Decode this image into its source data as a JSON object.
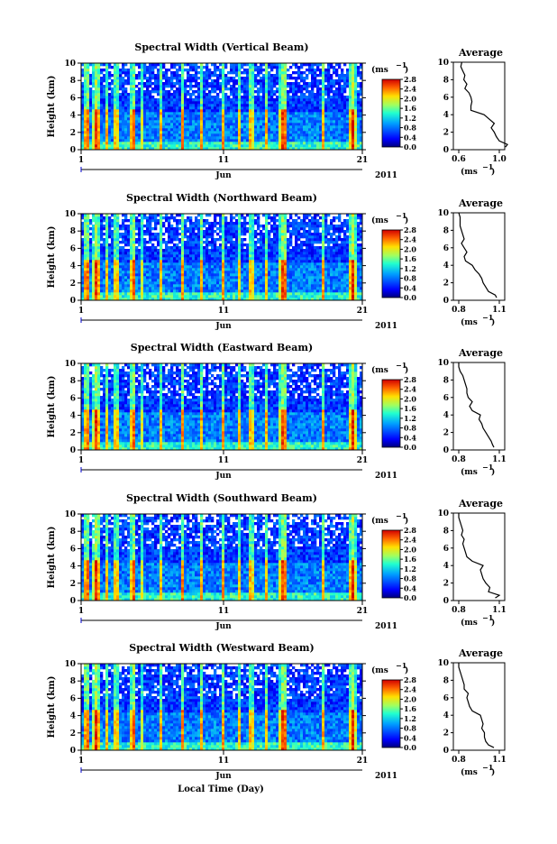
{
  "panels": [
    {
      "title": "Spectral Width (Vertical Beam)",
      "profile_ticks": [
        "0.6",
        "1.0"
      ]
    },
    {
      "title": "Spectral Width (Northward Beam)",
      "profile_ticks": [
        "0.8",
        "1.1"
      ]
    },
    {
      "title": "Spectral Width (Eastward Beam)",
      "profile_ticks": [
        "0.8",
        "1.1"
      ]
    },
    {
      "title": "Spectral Width (Southward Beam)",
      "profile_ticks": [
        "0.8",
        "1.1"
      ]
    },
    {
      "title": "Spectral Width (Westward Beam)",
      "profile_ticks": [
        "0.8",
        "1.1"
      ]
    }
  ],
  "common": {
    "ylabel": "Height (km)",
    "height_ticks": [
      "0",
      "2",
      "4",
      "6",
      "8",
      "10"
    ],
    "time_ticks": [
      "1",
      "11",
      "21"
    ],
    "month_label": "Jun",
    "year_label": "2011",
    "colorbar_unit": "(ms",
    "colorbar_exp": "−1",
    "colorbar_ticks": [
      "0.0",
      "0.4",
      "0.8",
      "1.2",
      "1.6",
      "2.0",
      "2.4",
      "2.8"
    ],
    "average_title": "Average",
    "profile_unit": "(ms",
    "profile_exp": "−1",
    "xlabel": "Local Time (Day)"
  },
  "chart_data": {
    "type": "heatmap",
    "x_range_day": [
      1,
      21
    ],
    "y_range_km": [
      0,
      10
    ],
    "color_range_ms": [
      0.0,
      2.8
    ],
    "average_profiles": [
      {
        "height": [
          0.3,
          0.6,
          1,
          1.5,
          2,
          2.5,
          3,
          3.5,
          4,
          4.5,
          5,
          5.5,
          6,
          6.5,
          7,
          7.5,
          8,
          8.5,
          9,
          9.5,
          10
        ],
        "value": [
          1.06,
          1.08,
          1.0,
          0.97,
          0.95,
          0.92,
          0.95,
          0.9,
          0.85,
          0.72,
          0.72,
          0.73,
          0.72,
          0.7,
          0.66,
          0.68,
          0.65,
          0.66,
          0.64,
          0.62,
          0.63
        ]
      },
      {
        "height": [
          0.3,
          0.6,
          1,
          1.5,
          2,
          2.5,
          3,
          3.5,
          4,
          4.5,
          5,
          5.5,
          6,
          6.5,
          7,
          7.5,
          8,
          8.5,
          9,
          9.5,
          10
        ],
        "value": [
          1.08,
          1.07,
          1.02,
          1.0,
          0.98,
          0.97,
          0.95,
          0.92,
          0.9,
          0.85,
          0.84,
          0.86,
          0.84,
          0.82,
          0.84,
          0.83,
          0.82,
          0.81,
          0.81,
          0.81,
          0.8
        ]
      },
      {
        "height": [
          0.3,
          0.6,
          1,
          1.5,
          2,
          2.5,
          3,
          3.5,
          4,
          4.5,
          5,
          5.5,
          6,
          6.5,
          7,
          7.5,
          8,
          8.5,
          9,
          9.5,
          10
        ],
        "value": [
          1.06,
          1.05,
          1.04,
          1.02,
          1.0,
          0.98,
          0.97,
          0.95,
          0.96,
          0.9,
          0.88,
          0.9,
          0.87,
          0.86,
          0.86,
          0.85,
          0.84,
          0.83,
          0.81,
          0.8,
          0.8
        ]
      },
      {
        "height": [
          0.3,
          0.6,
          1,
          1.5,
          2,
          2.5,
          3,
          3.5,
          4,
          4.5,
          5,
          5.5,
          6,
          6.5,
          7,
          7.5,
          8,
          8.5,
          9,
          9.5,
          10
        ],
        "value": [
          1.07,
          1.1,
          1.02,
          1.03,
          1.0,
          0.98,
          0.97,
          0.96,
          0.98,
          0.9,
          0.86,
          0.85,
          0.84,
          0.83,
          0.84,
          0.82,
          0.83,
          0.82,
          0.81,
          0.8,
          0.8
        ]
      },
      {
        "height": [
          0.3,
          0.6,
          1,
          1.5,
          2,
          2.5,
          3,
          3.5,
          4,
          4.5,
          5,
          5.5,
          6,
          6.5,
          7,
          7.5,
          8,
          8.5,
          9,
          9.5,
          10
        ],
        "value": [
          1.06,
          1.02,
          1.0,
          0.99,
          0.99,
          0.97,
          0.98,
          0.97,
          0.96,
          0.9,
          0.88,
          0.87,
          0.86,
          0.87,
          0.84,
          0.84,
          0.83,
          0.82,
          0.81,
          0.8,
          0.8
        ]
      }
    ]
  }
}
